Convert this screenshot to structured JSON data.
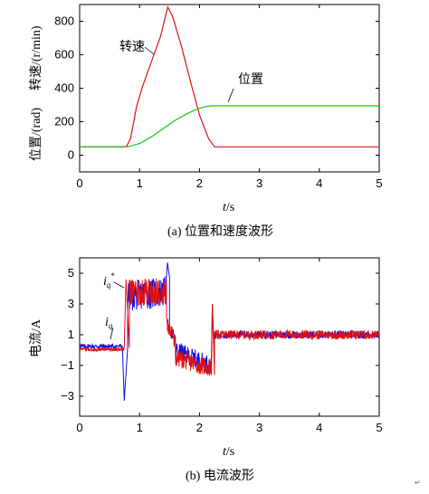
{
  "chart_data": [
    {
      "type": "line",
      "caption": "(a)  位置和速度波形",
      "xlabel": "t/s",
      "xlabel_italic": "t",
      "xlabel_unit": "/s",
      "ylabel_parts": [
        "位置/(rad)",
        "转速/(r/min)"
      ],
      "xlim": [
        0,
        5
      ],
      "ylim": [
        -100,
        900
      ],
      "xticks": [
        "0",
        "1",
        "2",
        "3",
        "4",
        "5"
      ],
      "yticks": [
        "0",
        "200",
        "400",
        "600",
        "800"
      ],
      "series": [
        {
          "name": "转速",
          "color": "#e01010",
          "x": [
            0,
            0.78,
            0.85,
            0.95,
            1.05,
            1.2,
            1.35,
            1.47,
            1.55,
            1.7,
            1.85,
            2.0,
            2.15,
            2.25,
            2.4,
            3.0,
            4.0,
            5.0
          ],
          "y": [
            50,
            50,
            100,
            290,
            410,
            560,
            710,
            885,
            830,
            650,
            440,
            240,
            100,
            50,
            50,
            50,
            50,
            50
          ]
        },
        {
          "name": "位置",
          "color": "#10c810",
          "x": [
            0,
            0.8,
            1.0,
            1.2,
            1.4,
            1.6,
            1.8,
            2.0,
            2.1,
            2.2,
            2.3,
            3.0,
            4.0,
            5.0
          ],
          "y": [
            50,
            50,
            70,
            110,
            160,
            210,
            250,
            280,
            290,
            295,
            295,
            295,
            295,
            295
          ]
        }
      ],
      "annotations": [
        {
          "text": "转速",
          "series": "转速"
        },
        {
          "text": "位置",
          "series": "位置"
        }
      ]
    },
    {
      "type": "line",
      "caption": "(b)  电流波形",
      "xlabel": "t/s",
      "xlabel_italic": "t",
      "xlabel_unit": "/s",
      "ylabel": "电流/A",
      "xlim": [
        0,
        5
      ],
      "ylim": [
        -4.3,
        6
      ],
      "xticks": [
        "0",
        "1",
        "2",
        "3",
        "4",
        "5"
      ],
      "yticks": [
        "5",
        "3",
        "1",
        "−1",
        "−3"
      ],
      "series": [
        {
          "name": "i_q",
          "color": "#1010e0",
          "segments": [
            {
              "x": [
                0,
                0.72
              ],
              "mean": 0.25,
              "noise": 0.15
            },
            {
              "x": [
                0.72,
                0.8
              ],
              "spike_to": -3.3
            },
            {
              "x": [
                0.8,
                1.45
              ],
              "from": 3.5,
              "to": 3.8,
              "noise": 1.0
            },
            {
              "x": [
                1.45,
                1.5
              ],
              "spike_to": 5.7
            },
            {
              "x": [
                1.5,
                1.6
              ],
              "from": 1.5,
              "to": 0.5,
              "noise": 0.5
            },
            {
              "x": [
                1.6,
                2.2
              ],
              "from": 0,
              "to": -1.0,
              "noise": 0.6
            },
            {
              "x": [
                2.2,
                2.25
              ],
              "spike_to": 3.0
            },
            {
              "x": [
                2.25,
                5.0
              ],
              "mean": 1.0,
              "noise": 0.25
            }
          ]
        },
        {
          "name": "i_q*",
          "color": "#e01010",
          "segments": [
            {
              "x": [
                0,
                0.75
              ],
              "mean": 0.05,
              "noise": 0.12
            },
            {
              "x": [
                0.75,
                0.83
              ],
              "spike_to": 4.6
            },
            {
              "x": [
                0.83,
                1.45
              ],
              "from": 3.7,
              "to": 3.8,
              "noise": 0.9
            },
            {
              "x": [
                1.45,
                1.6
              ],
              "from": 1.8,
              "to": 0.5,
              "noise": 0.5
            },
            {
              "x": [
                1.6,
                2.2
              ],
              "from": -0.5,
              "to": -1.2,
              "noise": 0.6
            },
            {
              "x": [
                2.2,
                2.25
              ],
              "spike_to": 3.0
            },
            {
              "x": [
                2.25,
                5.0
              ],
              "mean": 1.0,
              "noise": 0.3
            }
          ]
        }
      ],
      "annotations": [
        {
          "text": "i",
          "sub": "q",
          "sup": "*"
        },
        {
          "text": "i",
          "sub": "q",
          "sup": ""
        }
      ]
    }
  ],
  "corner_mark": "↵"
}
